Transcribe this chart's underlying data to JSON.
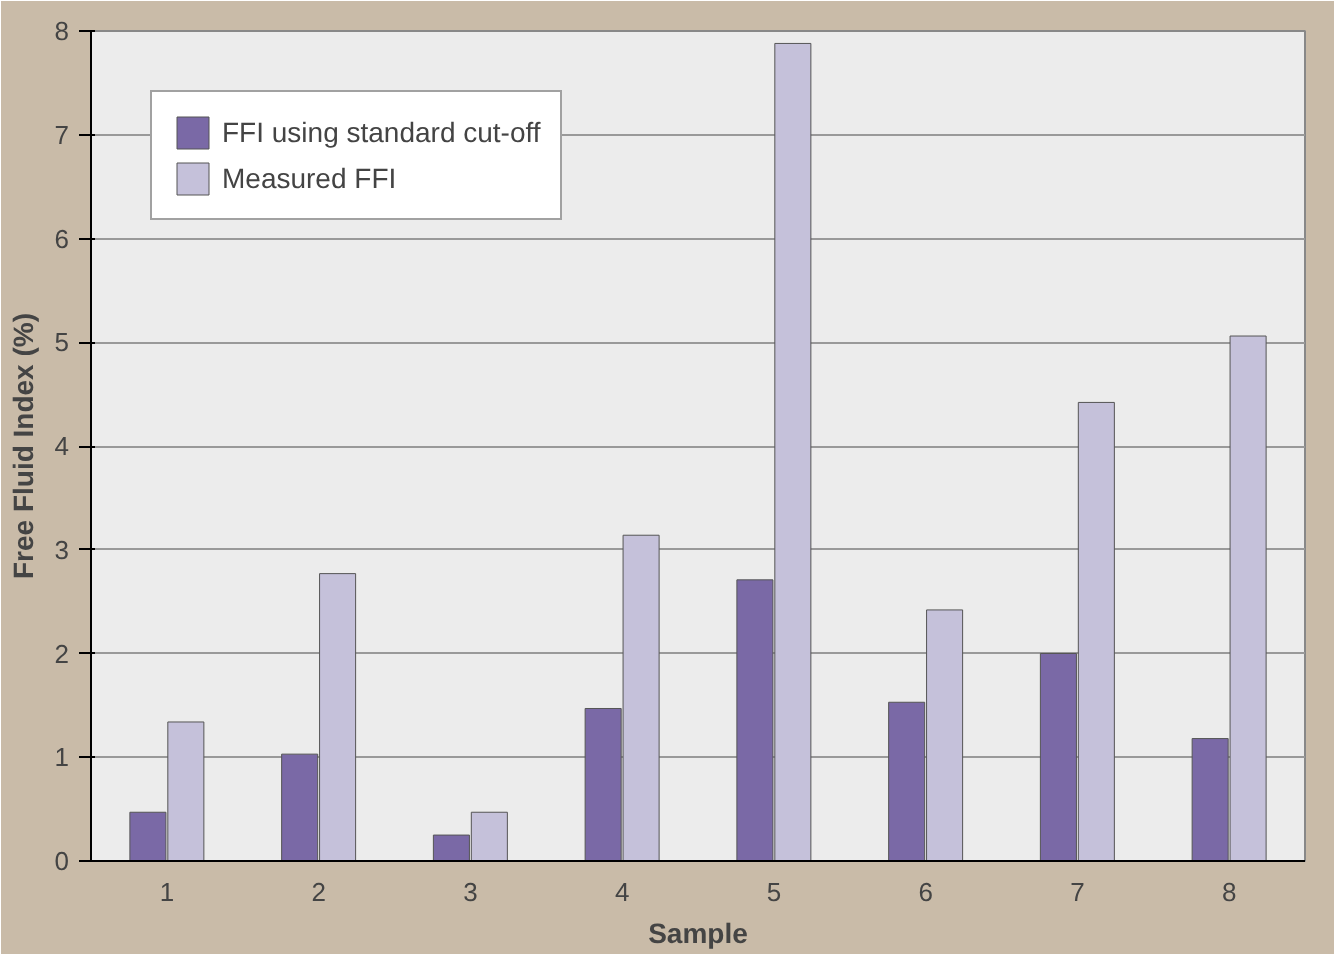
{
  "chart_data": {
    "type": "bar",
    "xlabel": "Sample",
    "ylabel": "Free Fluid Index (%)",
    "categories": [
      "1",
      "2",
      "3",
      "4",
      "5",
      "6",
      "7",
      "8"
    ],
    "series": [
      {
        "name": "FFI using standard cut-off",
        "color": "#7a69a6",
        "values": [
          0.47,
          1.03,
          0.25,
          1.47,
          2.71,
          1.53,
          2.0,
          1.18
        ]
      },
      {
        "name": "Measured FFI",
        "color": "#c5c1da",
        "values": [
          1.34,
          2.77,
          0.47,
          3.14,
          7.88,
          2.42,
          4.42,
          5.06
        ]
      }
    ],
    "ylim": [
      0,
      8
    ],
    "yticks": [
      0,
      1,
      2,
      3,
      4,
      5,
      6,
      7,
      8
    ],
    "grid": "y",
    "legend": "top left"
  }
}
